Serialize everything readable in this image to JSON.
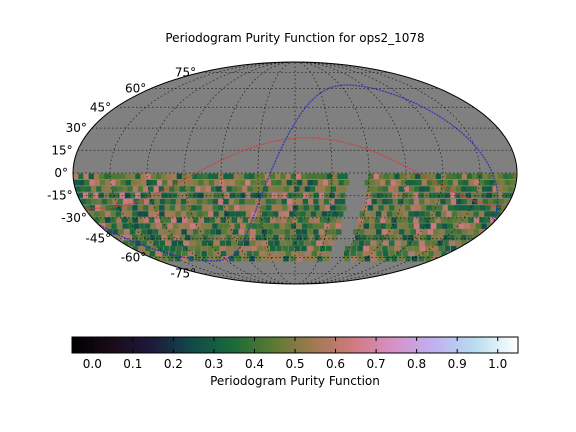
{
  "chart_data": {
    "type": "heatmap",
    "title": "Periodogram Purity Function for ops2_1078",
    "projection": "mollweide",
    "grid": true,
    "lat_labels": [
      "75°",
      "60°",
      "45°",
      "30°",
      "15°",
      "0°",
      "-15°",
      "-30°",
      "-45°",
      "-60°",
      "-75°"
    ],
    "lat_values": [
      75,
      60,
      45,
      30,
      15,
      0,
      -15,
      -30,
      -45,
      -60,
      -75
    ],
    "colorbar": {
      "label": "Periodogram Purity Function",
      "range": [
        -0.05,
        1.05
      ],
      "ticks": [
        0.0,
        0.1,
        0.2,
        0.3,
        0.4,
        0.5,
        0.6,
        0.7,
        0.8,
        0.9,
        1.0
      ],
      "tick_labels": [
        "0.0",
        "0.1",
        "0.2",
        "0.3",
        "0.4",
        "0.5",
        "0.6",
        "0.7",
        "0.8",
        "0.9",
        "1.0"
      ],
      "colormap": "cubehelix"
    },
    "no_data_color": "#808080",
    "covered_dec_range": [
      -65,
      0
    ],
    "value_range_in_data": [
      0.25,
      0.85
    ],
    "overlays": [
      {
        "type": "ecliptic",
        "color": "#d04040"
      },
      {
        "type": "galactic_plane",
        "color": "#3030c0"
      }
    ]
  }
}
